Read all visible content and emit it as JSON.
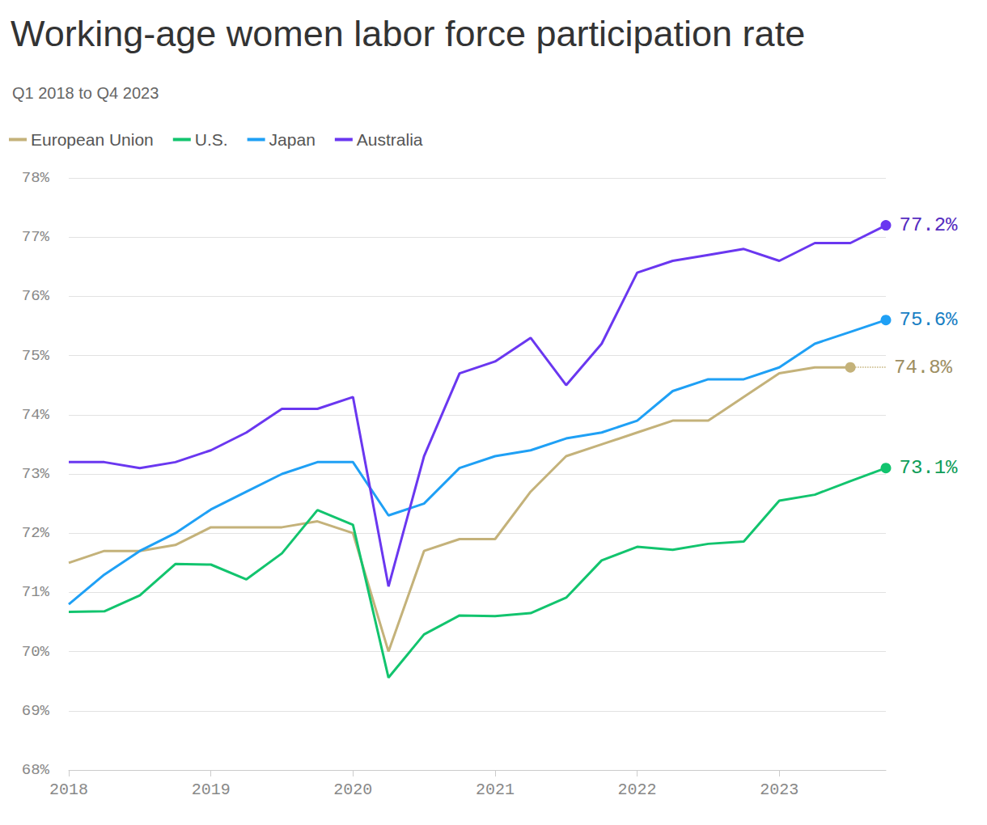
{
  "chart_data": {
    "type": "line",
    "title": "Working-age women labor force participation rate",
    "subtitle": "Q1 2018 to Q4 2023",
    "categories": [
      "2018",
      null,
      null,
      null,
      "2019",
      null,
      null,
      null,
      "2020",
      null,
      null,
      null,
      "2021",
      null,
      null,
      null,
      "2022",
      null,
      null,
      null,
      "2023",
      null,
      null,
      null
    ],
    "series": [
      {
        "name": "European Union",
        "color": "#c4b27a",
        "values": [
          71.5,
          71.7,
          71.7,
          71.8,
          72.1,
          72.1,
          72.1,
          72.2,
          72.0,
          70.0,
          71.7,
          71.9,
          71.9,
          72.7,
          73.3,
          73.5,
          73.7,
          73.9,
          73.9,
          74.3,
          74.7,
          74.8,
          74.8,
          null
        ],
        "value_labels": [
          null,
          null,
          null,
          null,
          null,
          null,
          null,
          null,
          null,
          null,
          null,
          null,
          null,
          null,
          null,
          null,
          null,
          null,
          null,
          null,
          null,
          null,
          "74.8%",
          null
        ]
      },
      {
        "name": "U.S.",
        "color": "#12c46e",
        "values": [
          70.67,
          70.68,
          70.95,
          71.48,
          71.47,
          71.22,
          71.66,
          72.39,
          72.14,
          69.56,
          70.29,
          70.61,
          70.6,
          70.65,
          70.91,
          71.54,
          71.77,
          71.72,
          71.82,
          71.86,
          72.55,
          72.65,
          72.88,
          73.1
        ],
        "value_labels": [
          null,
          null,
          null,
          null,
          null,
          null,
          null,
          null,
          null,
          null,
          null,
          null,
          null,
          null,
          null,
          null,
          null,
          null,
          null,
          null,
          null,
          null,
          null,
          "73.1%"
        ]
      },
      {
        "name": "Japan",
        "color": "#1fa0f5",
        "values": [
          70.8,
          71.3,
          71.7,
          72.0,
          72.4,
          72.7,
          73.0,
          73.2,
          73.2,
          72.3,
          72.5,
          73.1,
          73.3,
          73.4,
          73.6,
          73.7,
          73.9,
          74.4,
          74.6,
          74.6,
          74.8,
          75.2,
          75.4,
          75.6
        ],
        "value_labels": [
          null,
          null,
          null,
          null,
          null,
          null,
          null,
          null,
          null,
          null,
          null,
          null,
          null,
          null,
          null,
          null,
          null,
          null,
          null,
          null,
          null,
          null,
          null,
          "75.6%"
        ]
      },
      {
        "name": "Australia",
        "color": "#6a37f0",
        "values": [
          73.2,
          73.2,
          73.1,
          73.2,
          73.4,
          73.7,
          74.1,
          74.1,
          74.3,
          71.1,
          73.3,
          74.7,
          74.9,
          75.3,
          74.5,
          75.2,
          76.4,
          76.6,
          76.7,
          76.8,
          76.6,
          76.9,
          76.9,
          77.2
        ],
        "value_labels": [
          null,
          null,
          null,
          null,
          null,
          null,
          null,
          null,
          null,
          null,
          null,
          null,
          null,
          null,
          null,
          null,
          null,
          null,
          null,
          null,
          null,
          null,
          null,
          "77.2%"
        ]
      }
    ],
    "ylim": [
      68,
      78
    ],
    "yticks": [
      {
        "value": 68,
        "label": "68%"
      },
      {
        "value": 69,
        "label": "69%"
      },
      {
        "value": 70,
        "label": "70%"
      },
      {
        "value": 71,
        "label": "71%"
      },
      {
        "value": 72,
        "label": "72%"
      },
      {
        "value": 73,
        "label": "73%"
      },
      {
        "value": 74,
        "label": "74%"
      },
      {
        "value": 75,
        "label": "75%"
      },
      {
        "value": 76,
        "label": "76%"
      },
      {
        "value": 77,
        "label": "77%"
      },
      {
        "value": 78,
        "label": "78%"
      }
    ],
    "grid": true,
    "legend": "top-left"
  }
}
